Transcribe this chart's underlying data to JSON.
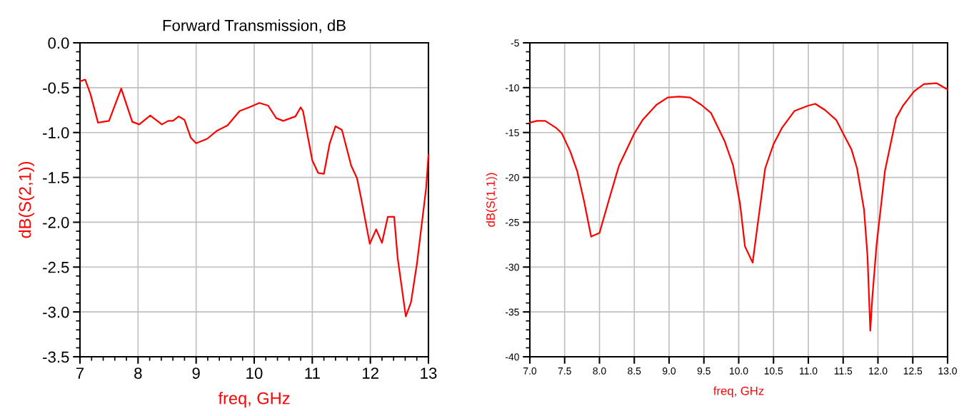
{
  "chart_data": [
    {
      "type": "line",
      "title": "Forward Transmission, dB",
      "xlabel": "freq, GHz",
      "ylabel": "dB(S(2,1))",
      "xlim": [
        7,
        13
      ],
      "ylim": [
        -3.5,
        0.0
      ],
      "xticks": [
        7,
        8,
        9,
        10,
        11,
        12,
        13
      ],
      "yticks": [
        {
          "value": 0,
          "label": "0.0"
        },
        -0.5,
        {
          "value": -1,
          "label": "-1.0"
        },
        -1.5,
        {
          "value": -2,
          "label": "-2.0"
        },
        -2.5,
        {
          "value": -3,
          "label": "-3.0"
        },
        -3.5
      ],
      "grid": true,
      "series": [
        {
          "color": "#ff0000",
          "x": [
            7.0,
            7.09,
            7.18,
            7.31,
            7.5,
            7.71,
            7.9,
            8.02,
            8.21,
            8.41,
            8.52,
            8.6,
            8.7,
            8.8,
            8.91,
            9.0,
            9.19,
            9.36,
            9.54,
            9.75,
            9.91,
            10.09,
            10.24,
            10.38,
            10.5,
            10.71,
            10.8,
            10.84,
            11.0,
            11.1,
            11.2,
            11.3,
            11.4,
            11.51,
            11.67,
            11.77,
            11.84,
            11.99,
            12.1,
            12.2,
            12.3,
            12.41,
            12.47,
            12.61,
            12.7,
            12.8,
            12.9,
            12.96,
            13.0
          ],
          "values": [
            -0.43,
            -0.41,
            -0.57,
            -0.89,
            -0.87,
            -0.51,
            -0.88,
            -0.91,
            -0.81,
            -0.91,
            -0.87,
            -0.87,
            -0.82,
            -0.86,
            -1.06,
            -1.12,
            -1.07,
            -0.98,
            -0.92,
            -0.76,
            -0.72,
            -0.67,
            -0.7,
            -0.84,
            -0.87,
            -0.82,
            -0.72,
            -0.76,
            -1.31,
            -1.45,
            -1.46,
            -1.12,
            -0.93,
            -0.97,
            -1.37,
            -1.51,
            -1.73,
            -2.24,
            -2.08,
            -2.23,
            -1.94,
            -1.94,
            -2.4,
            -3.05,
            -2.89,
            -2.47,
            -1.94,
            -1.62,
            -1.25
          ]
        }
      ]
    },
    {
      "type": "line",
      "xlabel": "freq, GHz",
      "ylabel": "dB(S(1,1))",
      "xlim": [
        7,
        13
      ],
      "ylim": [
        -40,
        -5
      ],
      "xticks": [
        {
          "value": 7,
          "label": "7.0"
        },
        7.5,
        {
          "value": 8,
          "label": "8.0"
        },
        8.5,
        {
          "value": 9,
          "label": "9.0"
        },
        9.5,
        {
          "value": 10,
          "label": "10.0"
        },
        10.5,
        {
          "value": 11,
          "label": "11.0"
        },
        11.5,
        {
          "value": 12,
          "label": "12.0"
        },
        12.5,
        {
          "value": 13,
          "label": "13.0"
        }
      ],
      "yticks": [
        -5,
        -10,
        -15,
        -20,
        -25,
        -30,
        -35,
        -40
      ],
      "grid": true,
      "series": [
        {
          "color": "#ff0000",
          "x": [
            7.0,
            7.1,
            7.22,
            7.38,
            7.46,
            7.58,
            7.68,
            7.78,
            7.88,
            8.0,
            8.14,
            8.28,
            8.5,
            8.62,
            8.82,
            8.98,
            9.14,
            9.3,
            9.46,
            9.6,
            9.8,
            9.92,
            10.02,
            10.09,
            10.2,
            10.28,
            10.38,
            10.5,
            10.62,
            10.8,
            11.0,
            11.1,
            11.24,
            11.4,
            11.5,
            11.62,
            11.7,
            11.8,
            11.85,
            11.89,
            11.92,
            11.98,
            12.02,
            12.1,
            12.26,
            12.36,
            12.52,
            12.66,
            12.84,
            13.0
          ],
          "values": [
            -13.9,
            -13.7,
            -13.7,
            -14.5,
            -15.1,
            -17.1,
            -19.3,
            -22.7,
            -26.6,
            -26.2,
            -22.4,
            -18.7,
            -15.1,
            -13.6,
            -11.9,
            -11.1,
            -11.0,
            -11.1,
            -11.9,
            -12.8,
            -16.0,
            -18.7,
            -23.0,
            -27.7,
            -29.5,
            -24.8,
            -19.0,
            -16.3,
            -14.5,
            -12.6,
            -12.0,
            -11.8,
            -12.5,
            -13.6,
            -15.1,
            -16.9,
            -19.0,
            -23.6,
            -28.8,
            -37.1,
            -33.3,
            -27.5,
            -24.8,
            -19.3,
            -13.4,
            -12.0,
            -10.4,
            -9.6,
            -9.5,
            -10.2
          ]
        }
      ]
    }
  ]
}
